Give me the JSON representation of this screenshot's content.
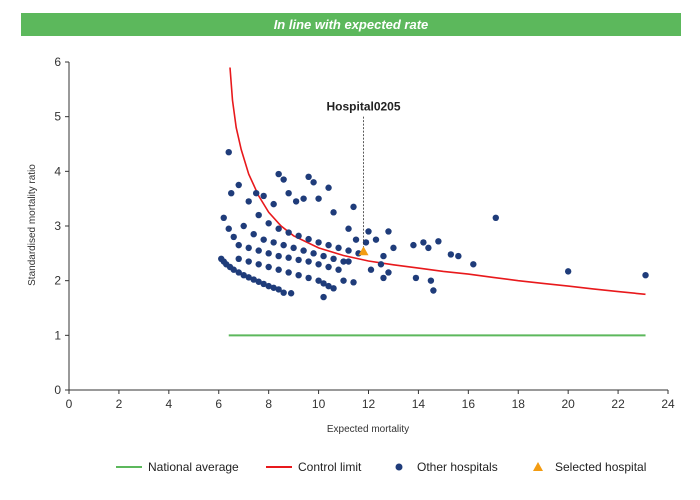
{
  "banner": {
    "text": "In line with expected rate"
  },
  "chart_data": {
    "type": "scatter",
    "xlabel": "Expected mortality",
    "ylabel": "Standardised mortality ratio",
    "xlim": [
      0,
      24
    ],
    "ylim": [
      0,
      6
    ],
    "xticks": [
      0,
      2,
      4,
      6,
      8,
      10,
      12,
      14,
      16,
      18,
      20,
      22,
      24
    ],
    "yticks": [
      0,
      1,
      2,
      3,
      4,
      5,
      6
    ],
    "legend": [
      "National average",
      "Control limit",
      "Other hospitals",
      "Selected hospital"
    ],
    "colors": {
      "national": "#5cb85c",
      "control": "#e8191c",
      "other": "#1f3c7a",
      "selected": "#f39c12"
    },
    "national_average": {
      "x": [
        6.4,
        23.1
      ],
      "y": 1.0
    },
    "control_limit_x": [
      6.45,
      6.55,
      6.7,
      6.9,
      7.2,
      7.6,
      8.0,
      8.5,
      9.0,
      10.0,
      11.0,
      12.0,
      13.0,
      14.0,
      15.0,
      16.0,
      17.0,
      18.0,
      19.0,
      20.0,
      21.0,
      22.0,
      23.1
    ],
    "control_limit_y": [
      5.9,
      5.3,
      4.8,
      4.4,
      3.95,
      3.55,
      3.25,
      3.0,
      2.82,
      2.6,
      2.46,
      2.36,
      2.29,
      2.23,
      2.17,
      2.12,
      2.06,
      2.0,
      1.95,
      1.9,
      1.85,
      1.8,
      1.75
    ],
    "other_hospitals": [
      {
        "x": 6.1,
        "y": 2.4
      },
      {
        "x": 6.2,
        "y": 2.35
      },
      {
        "x": 6.3,
        "y": 2.3
      },
      {
        "x": 6.45,
        "y": 2.25
      },
      {
        "x": 6.6,
        "y": 2.2
      },
      {
        "x": 6.8,
        "y": 2.15
      },
      {
        "x": 7.0,
        "y": 2.1
      },
      {
        "x": 7.2,
        "y": 2.06
      },
      {
        "x": 7.4,
        "y": 2.02
      },
      {
        "x": 7.6,
        "y": 1.98
      },
      {
        "x": 7.8,
        "y": 1.94
      },
      {
        "x": 8.0,
        "y": 1.9
      },
      {
        "x": 8.2,
        "y": 1.87
      },
      {
        "x": 8.4,
        "y": 1.84
      },
      {
        "x": 8.6,
        "y": 1.78
      },
      {
        "x": 8.9,
        "y": 1.77
      },
      {
        "x": 6.8,
        "y": 2.4
      },
      {
        "x": 7.2,
        "y": 2.35
      },
      {
        "x": 7.6,
        "y": 2.3
      },
      {
        "x": 8.0,
        "y": 2.25
      },
      {
        "x": 8.4,
        "y": 2.2
      },
      {
        "x": 8.8,
        "y": 2.15
      },
      {
        "x": 9.2,
        "y": 2.1
      },
      {
        "x": 9.6,
        "y": 2.05
      },
      {
        "x": 10.0,
        "y": 2.0
      },
      {
        "x": 10.2,
        "y": 1.95
      },
      {
        "x": 10.4,
        "y": 1.9
      },
      {
        "x": 10.6,
        "y": 1.86
      },
      {
        "x": 10.2,
        "y": 1.7
      },
      {
        "x": 6.2,
        "y": 3.15
      },
      {
        "x": 6.4,
        "y": 2.95
      },
      {
        "x": 6.6,
        "y": 2.8
      },
      {
        "x": 6.8,
        "y": 2.65
      },
      {
        "x": 7.2,
        "y": 2.6
      },
      {
        "x": 7.6,
        "y": 2.55
      },
      {
        "x": 8.0,
        "y": 2.5
      },
      {
        "x": 8.4,
        "y": 2.45
      },
      {
        "x": 8.8,
        "y": 2.42
      },
      {
        "x": 9.2,
        "y": 2.38
      },
      {
        "x": 9.6,
        "y": 2.35
      },
      {
        "x": 10.0,
        "y": 2.3
      },
      {
        "x": 10.4,
        "y": 2.25
      },
      {
        "x": 10.8,
        "y": 2.2
      },
      {
        "x": 11.0,
        "y": 2.0
      },
      {
        "x": 11.4,
        "y": 1.97
      },
      {
        "x": 7.0,
        "y": 3.0
      },
      {
        "x": 7.4,
        "y": 2.85
      },
      {
        "x": 7.8,
        "y": 2.75
      },
      {
        "x": 8.2,
        "y": 2.7
      },
      {
        "x": 8.6,
        "y": 2.65
      },
      {
        "x": 9.0,
        "y": 2.6
      },
      {
        "x": 9.4,
        "y": 2.55
      },
      {
        "x": 9.8,
        "y": 2.5
      },
      {
        "x": 10.2,
        "y": 2.45
      },
      {
        "x": 10.6,
        "y": 2.4
      },
      {
        "x": 11.0,
        "y": 2.35
      },
      {
        "x": 7.6,
        "y": 3.2
      },
      {
        "x": 8.0,
        "y": 3.05
      },
      {
        "x": 8.4,
        "y": 2.95
      },
      {
        "x": 8.8,
        "y": 2.88
      },
      {
        "x": 9.2,
        "y": 2.82
      },
      {
        "x": 9.6,
        "y": 2.76
      },
      {
        "x": 10.0,
        "y": 2.7
      },
      {
        "x": 10.4,
        "y": 2.65
      },
      {
        "x": 10.8,
        "y": 2.6
      },
      {
        "x": 11.2,
        "y": 2.55
      },
      {
        "x": 11.6,
        "y": 2.5
      },
      {
        "x": 6.4,
        "y": 4.35
      },
      {
        "x": 6.5,
        "y": 3.6
      },
      {
        "x": 6.8,
        "y": 3.75
      },
      {
        "x": 7.2,
        "y": 3.45
      },
      {
        "x": 7.5,
        "y": 3.6
      },
      {
        "x": 7.8,
        "y": 3.55
      },
      {
        "x": 8.2,
        "y": 3.4
      },
      {
        "x": 8.4,
        "y": 3.95
      },
      {
        "x": 8.6,
        "y": 3.85
      },
      {
        "x": 8.8,
        "y": 3.6
      },
      {
        "x": 9.1,
        "y": 3.45
      },
      {
        "x": 9.4,
        "y": 3.5
      },
      {
        "x": 9.6,
        "y": 3.9
      },
      {
        "x": 9.8,
        "y": 3.8
      },
      {
        "x": 10.0,
        "y": 3.5
      },
      {
        "x": 10.4,
        "y": 3.7
      },
      {
        "x": 10.6,
        "y": 3.25
      },
      {
        "x": 11.4,
        "y": 3.35
      },
      {
        "x": 11.2,
        "y": 2.95
      },
      {
        "x": 11.9,
        "y": 2.7
      },
      {
        "x": 12.0,
        "y": 2.9
      },
      {
        "x": 12.1,
        "y": 2.2
      },
      {
        "x": 12.5,
        "y": 2.3
      },
      {
        "x": 12.6,
        "y": 2.05
      },
      {
        "x": 12.8,
        "y": 2.9
      },
      {
        "x": 12.8,
        "y": 2.15
      },
      {
        "x": 13.0,
        "y": 2.6
      },
      {
        "x": 13.8,
        "y": 2.65
      },
      {
        "x": 13.9,
        "y": 2.05
      },
      {
        "x": 14.2,
        "y": 2.7
      },
      {
        "x": 14.4,
        "y": 2.6
      },
      {
        "x": 14.5,
        "y": 2.0
      },
      {
        "x": 14.6,
        "y": 1.82
      },
      {
        "x": 14.8,
        "y": 2.72
      },
      {
        "x": 15.3,
        "y": 2.48
      },
      {
        "x": 15.6,
        "y": 2.45
      },
      {
        "x": 16.2,
        "y": 2.3
      },
      {
        "x": 17.1,
        "y": 3.15
      },
      {
        "x": 20.0,
        "y": 2.17
      },
      {
        "x": 23.1,
        "y": 2.1
      },
      {
        "x": 12.3,
        "y": 2.75
      },
      {
        "x": 11.5,
        "y": 2.75
      },
      {
        "x": 12.6,
        "y": 2.45
      },
      {
        "x": 11.2,
        "y": 2.35
      }
    ],
    "selected_hospital": {
      "name": "Hospital0205",
      "x": 11.8,
      "y": 2.52
    }
  }
}
